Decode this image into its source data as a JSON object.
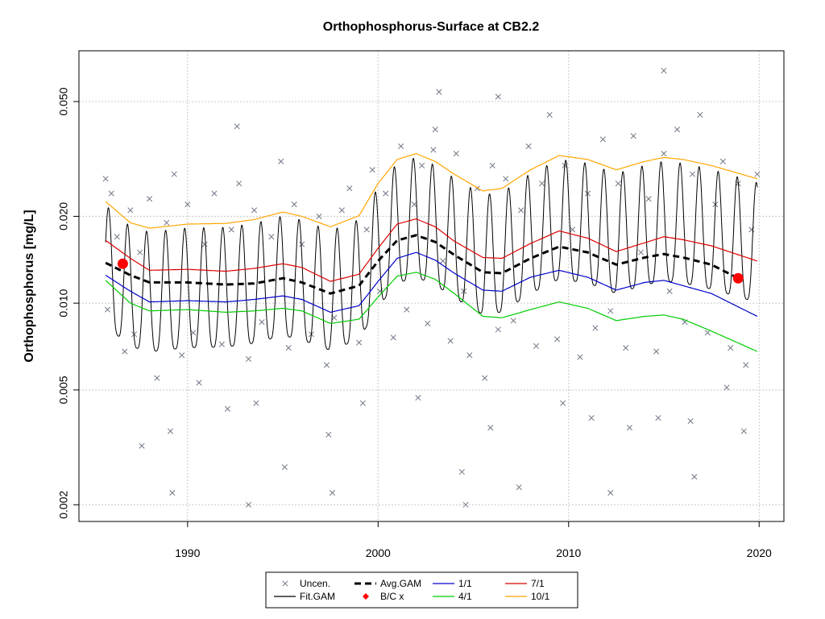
{
  "chart_data": {
    "type": "line",
    "title": "Orthophosphorus-Surface at CB2.2",
    "xlabel": "",
    "ylabel": "Orthophosphorus [mg/L]",
    "y_scale": "log",
    "xlim": [
      1984.3,
      2021.3
    ],
    "ylim": [
      0.00175,
      0.075
    ],
    "x_ticks": [
      "1990",
      "2000",
      "2010",
      "2020"
    ],
    "y_ticks": [
      "0.002",
      "0.005",
      "0.010",
      "0.020",
      "0.050"
    ],
    "grid": true,
    "legend_position": "bottom-center",
    "legend": [
      {
        "label": "Uncen.",
        "symbol": "x",
        "color": "#707784"
      },
      {
        "label": "Avg.GAM",
        "symbol": "dashed-line",
        "color": "#000000"
      },
      {
        "label": "1/1",
        "symbol": "line",
        "color": "#0000cc"
      },
      {
        "label": "7/1",
        "symbol": "line",
        "color": "#dd0000"
      },
      {
        "label": "Fit.GAM",
        "symbol": "line",
        "color": "#000000"
      },
      {
        "label": "B/C x",
        "symbol": "point",
        "color": "#ff0000"
      },
      {
        "label": "4/1",
        "symbol": "line",
        "color": "#00cc00"
      },
      {
        "label": "10/1",
        "symbol": "line",
        "color": "#ffa500"
      }
    ],
    "series": [
      {
        "name": "Avg.GAM",
        "color": "#000000",
        "style": "dashed",
        "x": [
          1985.7,
          1987,
          1988,
          1990,
          1992,
          1993.5,
          1995,
          1996,
          1997.5,
          1999,
          2000,
          2001,
          2002,
          2003,
          2004,
          2005.5,
          2006.5,
          2008,
          2009.5,
          2011,
          2012.5,
          2014,
          2015,
          2016,
          2017.5,
          2018.9
        ],
        "y": [
          0.0138,
          0.0125,
          0.0118,
          0.0118,
          0.0116,
          0.0117,
          0.0122,
          0.0118,
          0.0108,
          0.0115,
          0.014,
          0.0165,
          0.0172,
          0.0163,
          0.0147,
          0.0128,
          0.0127,
          0.0143,
          0.0157,
          0.015,
          0.0136,
          0.0144,
          0.0148,
          0.0144,
          0.0136,
          0.0122
        ]
      },
      {
        "name": "1/1",
        "color": "#0000cc",
        "style": "solid",
        "x": [
          1985.7,
          1987,
          1988,
          1990,
          1992,
          1993.5,
          1995,
          1996,
          1997.5,
          1999,
          2000,
          2001,
          2002,
          2003,
          2004,
          2005.5,
          2006.5,
          2008,
          2009.5,
          2011,
          2012.5,
          2014,
          2015,
          2016,
          2017.5,
          2019.9
        ],
        "y": [
          0.0125,
          0.011,
          0.0101,
          0.0102,
          0.0101,
          0.0103,
          0.0106,
          0.0103,
          0.0093,
          0.0098,
          0.0119,
          0.0143,
          0.015,
          0.0141,
          0.0127,
          0.0111,
          0.011,
          0.0123,
          0.013,
          0.0123,
          0.0111,
          0.0118,
          0.012,
          0.0115,
          0.0108,
          0.009
        ]
      },
      {
        "name": "7/1",
        "color": "#dd0000",
        "style": "solid",
        "x": [
          1985.7,
          1987,
          1988,
          1990,
          1992,
          1993.5,
          1995,
          1996,
          1997.5,
          1999,
          2000,
          2001,
          2002,
          2003,
          2004,
          2005.5,
          2006.5,
          2008,
          2009.5,
          2011,
          2012.5,
          2014,
          2015,
          2016,
          2017.5,
          2019.9
        ],
        "y": [
          0.0165,
          0.0143,
          0.013,
          0.0131,
          0.0129,
          0.0132,
          0.0137,
          0.0133,
          0.0119,
          0.0126,
          0.0155,
          0.0188,
          0.0196,
          0.0184,
          0.0164,
          0.0144,
          0.0143,
          0.0161,
          0.0178,
          0.0168,
          0.0151,
          0.0162,
          0.017,
          0.0166,
          0.0158,
          0.014
        ]
      },
      {
        "name": "4/1",
        "color": "#00cc00",
        "style": "solid",
        "x": [
          1985.7,
          1987,
          1988,
          1990,
          1992,
          1993.5,
          1995,
          1996,
          1997.5,
          1999,
          2000,
          2001,
          2002,
          2003,
          2004,
          2005.5,
          2006.5,
          2008,
          2009.5,
          2011,
          2012.5,
          2014,
          2015,
          2016,
          2017.5,
          2019.9
        ],
        "y": [
          0.012,
          0.01,
          0.0094,
          0.0095,
          0.0093,
          0.0094,
          0.0096,
          0.0094,
          0.0085,
          0.0088,
          0.0105,
          0.0124,
          0.0128,
          0.0121,
          0.0108,
          0.009,
          0.0089,
          0.0095,
          0.0101,
          0.0096,
          0.0087,
          0.009,
          0.0091,
          0.0088,
          0.008,
          0.0068
        ]
      },
      {
        "name": "10/1",
        "color": "#ffa500",
        "style": "solid",
        "x": [
          1985.7,
          1987,
          1988,
          1990,
          1992,
          1993.5,
          1995,
          1996,
          1997.5,
          1999,
          2000,
          2001,
          2002,
          2003,
          2004,
          2005.5,
          2006.5,
          2008,
          2009.5,
          2011,
          2012.5,
          2014,
          2015,
          2016,
          2017.5,
          2019.9
        ],
        "y": [
          0.0225,
          0.019,
          0.0182,
          0.0188,
          0.0189,
          0.0195,
          0.0207,
          0.02,
          0.0184,
          0.0201,
          0.026,
          0.0315,
          0.033,
          0.031,
          0.028,
          0.0245,
          0.025,
          0.029,
          0.0325,
          0.0315,
          0.029,
          0.031,
          0.032,
          0.0315,
          0.03,
          0.027
        ]
      }
    ],
    "fit_gam": {
      "name": "Fit.GAM",
      "color": "#000000",
      "style": "solid",
      "x_range": [
        1985.7,
        2019.9
      ],
      "seasonal_cycles_per_year": 1,
      "peak_series": "10/1",
      "trough_factor": 0.62
    },
    "bc_points": {
      "name": "B/C x",
      "color": "#ff0000",
      "x": [
        1986.6,
        2018.9
      ],
      "y": [
        0.0137,
        0.0122
      ]
    },
    "observations": {
      "name": "Uncen.",
      "color": "#707784",
      "symbol": "x",
      "x": [
        1985.7,
        1985.8,
        1986.0,
        1986.3,
        1986.7,
        1987.0,
        1987.2,
        1987.5,
        1988.0,
        1988.4,
        1988.9,
        1989.3,
        1989.7,
        1990.0,
        1990.3,
        1990.9,
        1991.4,
        1991.8,
        1992.3,
        1992.7,
        1993.2,
        1993.5,
        1993.9,
        1994.4,
        1994.9,
        1995.3,
        1995.6,
        1996.0,
        1996.5,
        1996.9,
        1997.3,
        1997.7,
        1998.1,
        1998.5,
        1999.0,
        1999.4,
        1999.7,
        2000.1,
        2000.4,
        2000.8,
        2001.2,
        2001.5,
        2001.9,
        2002.3,
        2002.6,
        2003.0,
        2003.4,
        2003.8,
        2004.1,
        2004.5,
        2004.8,
        2005.2,
        2005.6,
        2006.0,
        2006.3,
        2006.7,
        2007.1,
        2007.5,
        2007.9,
        2008.3,
        2008.6,
        2009.0,
        2009.4,
        2009.8,
        2010.2,
        2010.6,
        2011.0,
        2011.4,
        2011.8,
        2012.2,
        2012.6,
        2013.0,
        2013.4,
        2013.8,
        2014.2,
        2014.6,
        2015.0,
        2015.3,
        2015.7,
        2016.1,
        2016.5,
        2016.9,
        2017.3,
        2017.7,
        2018.1,
        2018.5,
        2018.9,
        2019.3,
        2019.6,
        2019.9,
        1987.6,
        1989.1,
        1990.6,
        1992.1,
        1993.6,
        1995.1,
        1997.4,
        1999.2,
        2002.1,
        2004.4,
        2005.9,
        2007.4,
        2009.7,
        2011.2,
        2013.2,
        2014.7,
        2016.4,
        2018.3,
        2019.2,
        2004.6,
        2015.0,
        2006.3,
        2002.9,
        1992.6,
        2003.2,
        1989.2,
        1993.2,
        1997.6,
        2012.2,
        2016.6
      ],
      "y": [
        0.027,
        0.0095,
        0.024,
        0.017,
        0.0068,
        0.021,
        0.0078,
        0.015,
        0.023,
        0.0055,
        0.019,
        0.028,
        0.0066,
        0.022,
        0.0079,
        0.016,
        0.024,
        0.0072,
        0.018,
        0.026,
        0.0064,
        0.021,
        0.0086,
        0.017,
        0.031,
        0.007,
        0.022,
        0.016,
        0.0078,
        0.02,
        0.0061,
        0.0089,
        0.021,
        0.025,
        0.0073,
        0.018,
        0.029,
        0.011,
        0.024,
        0.0076,
        0.035,
        0.0095,
        0.022,
        0.03,
        0.0085,
        0.04,
        0.014,
        0.0074,
        0.033,
        0.011,
        0.0066,
        0.025,
        0.0055,
        0.03,
        0.0081,
        0.027,
        0.0087,
        0.021,
        0.035,
        0.0071,
        0.026,
        0.045,
        0.0075,
        0.03,
        0.018,
        0.0065,
        0.024,
        0.0082,
        0.037,
        0.0094,
        0.026,
        0.007,
        0.038,
        0.015,
        0.023,
        0.0068,
        0.033,
        0.011,
        0.04,
        0.0086,
        0.028,
        0.045,
        0.0079,
        0.022,
        0.031,
        0.007,
        0.026,
        0.0061,
        0.018,
        0.028,
        0.0032,
        0.0036,
        0.0053,
        0.0043,
        0.0045,
        0.0027,
        0.0035,
        0.0045,
        0.0047,
        0.0026,
        0.0037,
        0.0023,
        0.0045,
        0.004,
        0.0037,
        0.004,
        0.0039,
        0.0051,
        0.0036,
        0.002,
        0.064,
        0.052,
        0.034,
        0.041,
        0.054,
        0.0022,
        0.002,
        0.0022,
        0.0022,
        0.0025
      ]
    }
  }
}
